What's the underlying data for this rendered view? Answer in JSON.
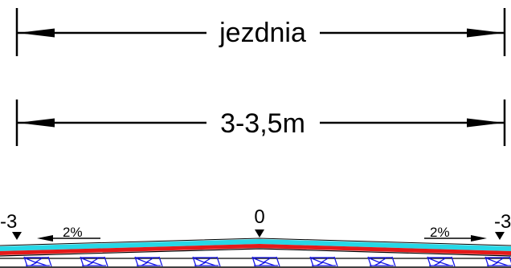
{
  "dimensions": {
    "top_label": "jezdnia",
    "width_label": "3-3,5m"
  },
  "elevations": {
    "left": "-3",
    "center": "0",
    "right": "-3"
  },
  "slopes": {
    "left": "2%",
    "right": "2%"
  },
  "colors": {
    "line": "#000000",
    "surface_top": "#27d7e6",
    "surface_base": "#e41a1a",
    "hatch": "#1a1ae6"
  }
}
